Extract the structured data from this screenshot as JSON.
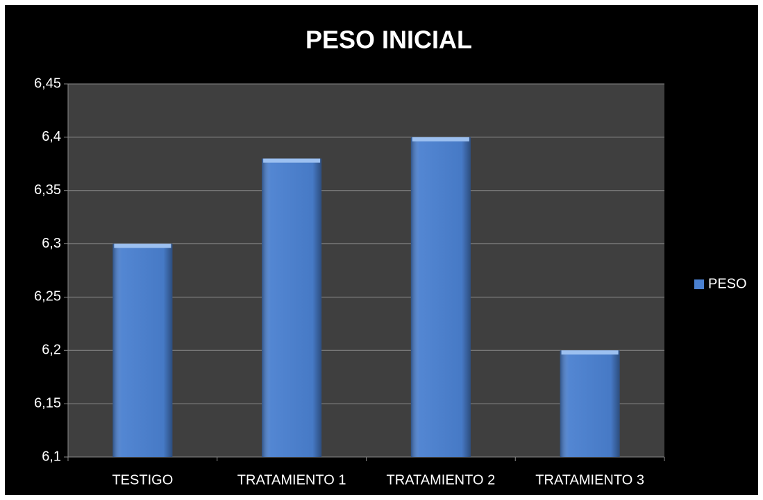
{
  "chart_data": {
    "type": "bar",
    "title": "PESO INICIAL",
    "categories": [
      "TESTIGO",
      "TRATAMIENTO 1",
      "TRATAMIENTO 2",
      "TRATAMIENTO 3"
    ],
    "series": [
      {
        "name": "PESO",
        "color": "#4a80d0",
        "values": [
          6.3,
          6.38,
          6.4,
          6.2
        ]
      }
    ],
    "ylim": [
      6.1,
      6.45
    ],
    "yticks": [
      {
        "value": 6.1,
        "label": "6,1"
      },
      {
        "value": 6.15,
        "label": "6,15"
      },
      {
        "value": 6.2,
        "label": "6,2"
      },
      {
        "value": 6.25,
        "label": "6,25"
      },
      {
        "value": 6.3,
        "label": "6,3"
      },
      {
        "value": 6.35,
        "label": "6,35"
      },
      {
        "value": 6.4,
        "label": "6,4"
      },
      {
        "value": 6.45,
        "label": "6,45"
      }
    ],
    "grid": true,
    "legend": "right"
  }
}
